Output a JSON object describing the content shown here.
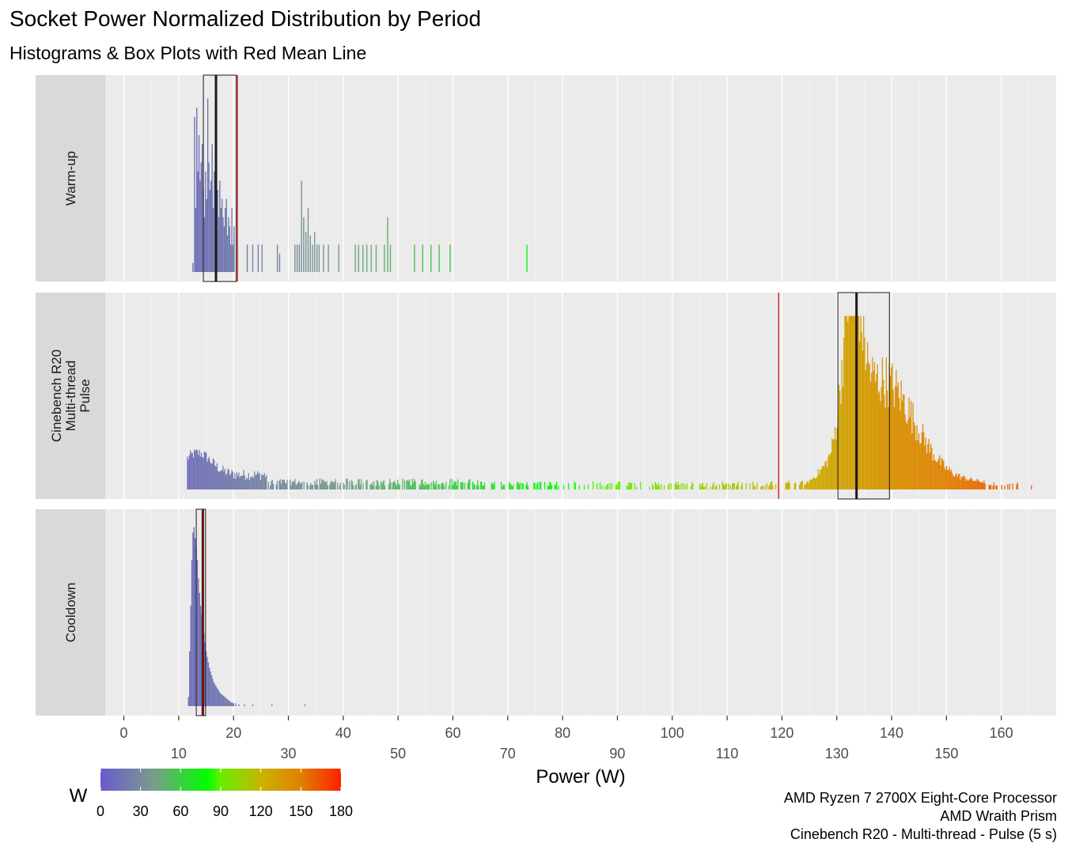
{
  "title": "Socket Power Normalized Distribution by Period",
  "subtitle": "Histograms & Box Plots with Red Mean Line",
  "caption": [
    "AMD Ryzen 7 2700X Eight-Core Processor",
    "AMD Wraith Prism",
    "Cinebench R20 - Multi-thread - Pulse (5 s)"
  ],
  "chart_data": {
    "type": "histogram",
    "xlabel": "Power (W)",
    "x_ticks_top": [
      0,
      20,
      40,
      60,
      80,
      100,
      120,
      140,
      160
    ],
    "x_ticks_bottom": [
      10,
      30,
      50,
      70,
      90,
      110,
      130,
      150
    ],
    "xlim": [
      -3.4,
      170
    ],
    "grid": true,
    "mean_line_color": "#cc0000",
    "color_scale": {
      "title": "W",
      "stops": [
        {
          "value": 0,
          "color": "#6a5acd"
        },
        {
          "value": 40,
          "color": "#7a9c8a"
        },
        {
          "value": 80,
          "color": "#00ff00"
        },
        {
          "value": 90,
          "color": "#66ee00"
        },
        {
          "value": 120,
          "color": "#c8b400"
        },
        {
          "value": 150,
          "color": "#e08000"
        },
        {
          "value": 180,
          "color": "#ff2000"
        }
      ],
      "ticks": [
        0,
        30,
        60,
        90,
        120,
        150,
        180
      ],
      "range": [
        0,
        180
      ]
    },
    "facets": [
      {
        "label": "Warm-up",
        "mean": 20.7,
        "box": {
          "q1": 14.5,
          "median": 16.8,
          "q3": 20.5
        },
        "histogram": [
          [
            12.6,
            0.05
          ],
          [
            12.9,
            0.85
          ],
          [
            13.1,
            0.35
          ],
          [
            13.3,
            0.9
          ],
          [
            13.5,
            0.55
          ],
          [
            13.7,
            0.75
          ],
          [
            13.9,
            0.5
          ],
          [
            14.1,
            0.6
          ],
          [
            14.3,
            0.7
          ],
          [
            14.5,
            0.45
          ],
          [
            14.7,
            0.3
          ],
          [
            14.9,
            0.55
          ],
          [
            15.1,
            0.4
          ],
          [
            15.3,
            0.95
          ],
          [
            15.5,
            0.6
          ],
          [
            15.7,
            0.45
          ],
          [
            15.9,
            0.5
          ],
          [
            16.1,
            0.7
          ],
          [
            16.3,
            0.35
          ],
          [
            16.5,
            0.55
          ],
          [
            16.7,
            0.25
          ],
          [
            16.9,
            0.6
          ],
          [
            17.1,
            0.45
          ],
          [
            17.3,
            0.3
          ],
          [
            17.5,
            0.5
          ],
          [
            17.7,
            0.35
          ],
          [
            17.9,
            0.4
          ],
          [
            18.1,
            0.3
          ],
          [
            18.3,
            0.25
          ],
          [
            18.5,
            0.35
          ],
          [
            18.7,
            0.4
          ],
          [
            18.9,
            0.2
          ],
          [
            19.1,
            0.3
          ],
          [
            19.3,
            0.25
          ],
          [
            19.5,
            0.15
          ],
          [
            19.7,
            0.35
          ],
          [
            19.9,
            0.15
          ],
          [
            20.1,
            0.25
          ],
          [
            22.5,
            0.15
          ],
          [
            23.5,
            0.15
          ],
          [
            24.5,
            0.15
          ],
          [
            25.2,
            0.15
          ],
          [
            28.0,
            0.15
          ],
          [
            28.4,
            0.1
          ],
          [
            31.2,
            0.15
          ],
          [
            31.6,
            0.15
          ],
          [
            32.0,
            0.15
          ],
          [
            32.4,
            0.5
          ],
          [
            32.8,
            0.3
          ],
          [
            33.2,
            0.22
          ],
          [
            33.6,
            0.35
          ],
          [
            34.0,
            0.2
          ],
          [
            34.4,
            0.15
          ],
          [
            34.8,
            0.22
          ],
          [
            35.2,
            0.15
          ],
          [
            35.6,
            0.15
          ],
          [
            36.4,
            0.15
          ],
          [
            37.3,
            0.15
          ],
          [
            39.2,
            0.15
          ],
          [
            42.2,
            0.15
          ],
          [
            42.8,
            0.15
          ],
          [
            43.6,
            0.15
          ],
          [
            44.3,
            0.15
          ],
          [
            45.1,
            0.15
          ],
          [
            46.0,
            0.15
          ],
          [
            47.5,
            0.15
          ],
          [
            48.1,
            0.3
          ],
          [
            48.6,
            0.15
          ],
          [
            53.0,
            0.15
          ],
          [
            54.5,
            0.15
          ],
          [
            56.0,
            0.15
          ],
          [
            57.5,
            0.15
          ],
          [
            59.5,
            0.15
          ],
          [
            73.5,
            0.15
          ]
        ]
      },
      {
        "label": [
          "Cinebench R20",
          "Multi-thread",
          "Pulse"
        ],
        "mean": 119.4,
        "box": {
          "q1": 130.2,
          "median": 133.6,
          "q3": 139.6
        },
        "histogram": []
      },
      {
        "label": "Cooldown",
        "mean": 14.4,
        "box": {
          "q1": 13.2,
          "median": 14.4,
          "q3": 14.9
        },
        "histogram": [
          [
            11.8,
            0.05
          ],
          [
            12.0,
            0.3
          ],
          [
            12.2,
            0.55
          ],
          [
            12.4,
            0.8
          ],
          [
            12.6,
            0.95
          ],
          [
            12.8,
            0.98
          ],
          [
            13.0,
            0.92
          ],
          [
            13.2,
            0.88
          ],
          [
            13.4,
            0.8
          ],
          [
            13.6,
            0.7
          ],
          [
            13.8,
            0.62
          ],
          [
            14.0,
            0.55
          ],
          [
            14.2,
            0.5
          ],
          [
            14.4,
            0.45
          ],
          [
            14.6,
            0.4
          ],
          [
            14.8,
            0.35
          ],
          [
            15.0,
            0.3
          ],
          [
            15.2,
            0.27
          ],
          [
            15.4,
            0.24
          ],
          [
            15.6,
            0.21
          ],
          [
            15.8,
            0.19
          ],
          [
            16.0,
            0.17
          ],
          [
            16.2,
            0.15
          ],
          [
            16.4,
            0.13
          ],
          [
            16.6,
            0.12
          ],
          [
            16.8,
            0.11
          ],
          [
            17.0,
            0.1
          ],
          [
            17.2,
            0.09
          ],
          [
            17.4,
            0.08
          ],
          [
            17.6,
            0.07
          ],
          [
            17.8,
            0.065
          ],
          [
            18.0,
            0.06
          ],
          [
            18.2,
            0.055
          ],
          [
            18.4,
            0.05
          ],
          [
            18.6,
            0.045
          ],
          [
            18.8,
            0.04
          ],
          [
            19.0,
            0.035
          ],
          [
            19.2,
            0.03
          ],
          [
            19.4,
            0.025
          ],
          [
            19.6,
            0.02
          ],
          [
            19.8,
            0.02
          ],
          [
            20.0,
            0.015
          ],
          [
            20.4,
            0.015
          ],
          [
            21.0,
            0.01
          ],
          [
            22.0,
            0.01
          ],
          [
            23.5,
            0.01
          ],
          [
            27.0,
            0.01
          ],
          [
            33.0,
            0.01
          ]
        ]
      }
    ]
  }
}
